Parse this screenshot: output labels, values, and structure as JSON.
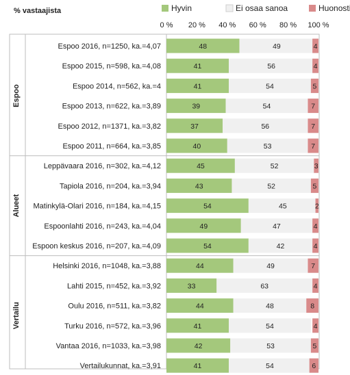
{
  "chart_data": {
    "type": "bar",
    "stacked": true,
    "orientation": "horizontal",
    "title": "% vastaajista",
    "xlim": [
      0,
      100
    ],
    "x_ticks": [
      "0 %",
      "20 %",
      "40 %",
      "60 %",
      "80 %",
      "100 %"
    ],
    "legend_position": "top",
    "groups": [
      {
        "name": "Espoo",
        "rows": [
          0,
          5
        ]
      },
      {
        "name": "Alueet",
        "rows": [
          6,
          10
        ]
      },
      {
        "name": "Vertailu",
        "rows": [
          11,
          16
        ]
      }
    ],
    "categories": [
      "Espoo 2016, n=1250, ka.=4,07",
      "Espoo 2015, n=598, ka.=4,08",
      "Espoo 2014, n=562, ka.=4",
      "Espoo 2013, n=622, ka.=3,89",
      "Espoo 2012, n=1371, ka.=3,82",
      "Espoo 2011, n=664, ka.=3,85",
      "Leppävaara 2016, n=302, ka.=4,12",
      "Tapiola 2016, n=204, ka.=3,94",
      "Matinkylä-Olari 2016, n=184, ka.=4,15",
      "Espoonlahti 2016, n=243, ka.=4,04",
      "Espoon keskus 2016, n=207, ka.=4,09",
      "Helsinki 2016, n=1048, ka.=3,88",
      "Lahti 2015, n=452, ka.=3,92",
      "Oulu 2016, n=511, ka.=3,82",
      "Turku 2016, n=572, ka.=3,96",
      "Vantaa 2016, n=1033, ka.=3,98",
      "Vertailukunnat, ka.=3,91"
    ],
    "series": [
      {
        "name": "Hyvin",
        "color": "#a4c87c",
        "values": [
          48,
          41,
          41,
          39,
          37,
          40,
          45,
          43,
          54,
          49,
          54,
          44,
          33,
          44,
          41,
          42,
          41
        ]
      },
      {
        "name": "Ei osaa sanoa",
        "color": "#f0f0f0",
        "values": [
          49,
          56,
          54,
          54,
          56,
          53,
          52,
          52,
          45,
          47,
          42,
          49,
          63,
          48,
          54,
          53,
          54
        ]
      },
      {
        "name": "Huonosti",
        "color": "#d98a8a",
        "values": [
          4,
          4,
          5,
          7,
          7,
          7,
          3,
          5,
          2,
          4,
          4,
          7,
          4,
          8,
          4,
          5,
          6
        ]
      }
    ]
  }
}
